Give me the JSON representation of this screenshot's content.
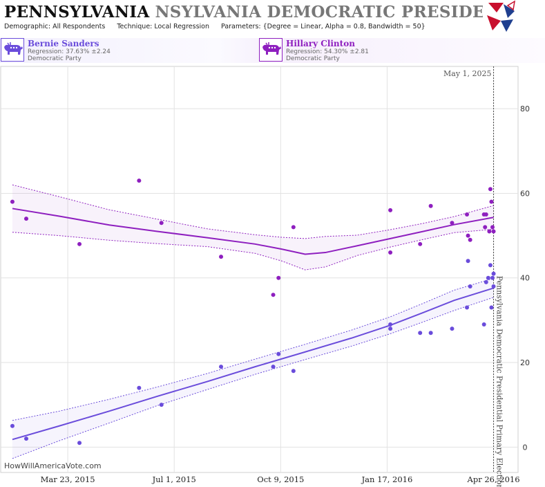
{
  "header": {
    "title_main": "PENNSYLVANIA",
    "title_sub": "NSYLVANIA DEMOCRATIC PRESIDENTIAL PRIM",
    "params": [
      {
        "key": "Demographic:",
        "value": "All Respondents"
      },
      {
        "key": "Technique:",
        "value": "Local Regression"
      },
      {
        "key": "Parameters:",
        "value": "{Degree = Linear, Alpha = 0.8, Bandwidth = 50}"
      }
    ]
  },
  "candidates": [
    {
      "name": "Bernie Sanders",
      "regression": "Regression: 37.63% ±2.24",
      "party": "Democratic Party",
      "color": "#6a4cdb"
    },
    {
      "name": "Hillary Clinton",
      "regression": "Regression: 54.30% ±2.81",
      "party": "Democratic Party",
      "color": "#8e1fbf"
    }
  ],
  "credit": "HowWillAmericaVote.com",
  "chart_data": {
    "type": "scatter",
    "x_axis": {
      "min": "2015-01-19",
      "max": "2016-05-19",
      "ticks": [
        "Mar 23, 2015",
        "Jul 1, 2015",
        "Oct 9, 2015",
        "Jan 17, 2016",
        "Apr 26, 2016"
      ]
    },
    "y_axis": {
      "min": -6,
      "max": 90,
      "ticks": [
        0,
        20,
        40,
        60,
        80
      ]
    },
    "grid": true,
    "marker": {
      "date": "2016-04-26",
      "label": "May 1, 2025",
      "vertical_label": "Pennsylvania Democratic Presidential Primary Election"
    },
    "series": [
      {
        "name": "Hillary Clinton",
        "color": "#8e1fbf",
        "points": [
          {
            "x": "2015-01-30",
            "y": 58
          },
          {
            "x": "2015-02-12",
            "y": 54
          },
          {
            "x": "2015-04-03",
            "y": 48
          },
          {
            "x": "2015-05-29",
            "y": 63
          },
          {
            "x": "2015-06-19",
            "y": 53
          },
          {
            "x": "2015-08-14",
            "y": 45
          },
          {
            "x": "2015-10-02",
            "y": 36
          },
          {
            "x": "2015-10-07",
            "y": 40
          },
          {
            "x": "2015-10-21",
            "y": 52
          },
          {
            "x": "2016-01-20",
            "y": 56
          },
          {
            "x": "2016-01-20",
            "y": 46
          },
          {
            "x": "2016-02-17",
            "y": 48
          },
          {
            "x": "2016-02-27",
            "y": 57
          },
          {
            "x": "2016-03-18",
            "y": 53
          },
          {
            "x": "2016-04-01",
            "y": 55
          },
          {
            "x": "2016-04-02",
            "y": 50
          },
          {
            "x": "2016-04-04",
            "y": 49
          },
          {
            "x": "2016-04-17",
            "y": 55
          },
          {
            "x": "2016-04-18",
            "y": 52
          },
          {
            "x": "2016-04-19",
            "y": 55
          },
          {
            "x": "2016-04-22",
            "y": 51
          },
          {
            "x": "2016-04-23",
            "y": 61
          },
          {
            "x": "2016-04-24",
            "y": 58
          },
          {
            "x": "2016-04-25",
            "y": 52
          },
          {
            "x": "2016-04-26",
            "y": 51
          }
        ],
        "fit": [
          {
            "x": "2015-01-30",
            "y": 56.4,
            "lo": 50.8,
            "hi": 62.0
          },
          {
            "x": "2015-03-15",
            "y": 54.6,
            "lo": 50.0,
            "hi": 59.2
          },
          {
            "x": "2015-05-01",
            "y": 52.5,
            "lo": 48.9,
            "hi": 56.1
          },
          {
            "x": "2015-06-15",
            "y": 51.0,
            "lo": 48.1,
            "hi": 53.9
          },
          {
            "x": "2015-08-01",
            "y": 49.5,
            "lo": 47.4,
            "hi": 51.6
          },
          {
            "x": "2015-09-15",
            "y": 48.0,
            "lo": 45.8,
            "hi": 50.2
          },
          {
            "x": "2015-10-10",
            "y": 46.8,
            "lo": 44.0,
            "hi": 49.6
          },
          {
            "x": "2015-11-01",
            "y": 45.6,
            "lo": 41.9,
            "hi": 49.3
          },
          {
            "x": "2015-11-20",
            "y": 46.0,
            "lo": 42.6,
            "hi": 49.8
          },
          {
            "x": "2015-12-20",
            "y": 47.6,
            "lo": 45.3,
            "hi": 50.1
          },
          {
            "x": "2016-01-20",
            "y": 49.3,
            "lo": 47.3,
            "hi": 51.4
          },
          {
            "x": "2016-02-20",
            "y": 51.0,
            "lo": 49.1,
            "hi": 52.9
          },
          {
            "x": "2016-03-20",
            "y": 52.6,
            "lo": 50.7,
            "hi": 54.5
          },
          {
            "x": "2016-04-26",
            "y": 54.3,
            "lo": 51.5,
            "hi": 57.1
          }
        ]
      },
      {
        "name": "Bernie Sanders",
        "color": "#6a4cdb",
        "points": [
          {
            "x": "2015-01-30",
            "y": 5
          },
          {
            "x": "2015-02-12",
            "y": 2
          },
          {
            "x": "2015-04-03",
            "y": 1
          },
          {
            "x": "2015-05-29",
            "y": 14
          },
          {
            "x": "2015-06-19",
            "y": 10
          },
          {
            "x": "2015-08-14",
            "y": 19
          },
          {
            "x": "2015-10-02",
            "y": 19
          },
          {
            "x": "2015-10-07",
            "y": 22
          },
          {
            "x": "2015-10-21",
            "y": 18
          },
          {
            "x": "2016-01-20",
            "y": 29
          },
          {
            "x": "2016-01-20",
            "y": 28
          },
          {
            "x": "2016-02-17",
            "y": 27
          },
          {
            "x": "2016-02-27",
            "y": 27
          },
          {
            "x": "2016-03-18",
            "y": 28
          },
          {
            "x": "2016-04-01",
            "y": 33
          },
          {
            "x": "2016-04-02",
            "y": 44
          },
          {
            "x": "2016-04-04",
            "y": 38
          },
          {
            "x": "2016-04-17",
            "y": 29
          },
          {
            "x": "2016-04-19",
            "y": 39
          },
          {
            "x": "2016-04-21",
            "y": 40
          },
          {
            "x": "2016-04-23",
            "y": 43
          },
          {
            "x": "2016-04-24",
            "y": 33
          },
          {
            "x": "2016-04-25",
            "y": 40
          },
          {
            "x": "2016-04-26",
            "y": 41
          },
          {
            "x": "2016-04-26",
            "y": 38
          }
        ],
        "fit": [
          {
            "x": "2015-01-30",
            "y": 1.8,
            "lo": -2.7,
            "hi": 6.3
          },
          {
            "x": "2015-03-15",
            "y": 5.0,
            "lo": 1.5,
            "hi": 8.5
          },
          {
            "x": "2015-05-01",
            "y": 8.5,
            "lo": 5.7,
            "hi": 11.3
          },
          {
            "x": "2015-06-15",
            "y": 12.0,
            "lo": 9.8,
            "hi": 14.2
          },
          {
            "x": "2015-08-01",
            "y": 15.5,
            "lo": 13.6,
            "hi": 17.4
          },
          {
            "x": "2015-09-15",
            "y": 19.0,
            "lo": 17.2,
            "hi": 20.8
          },
          {
            "x": "2015-11-01",
            "y": 22.5,
            "lo": 20.7,
            "hi": 24.3
          },
          {
            "x": "2015-12-15",
            "y": 25.8,
            "lo": 23.9,
            "hi": 27.7
          },
          {
            "x": "2016-01-20",
            "y": 28.8,
            "lo": 26.8,
            "hi": 30.8
          },
          {
            "x": "2016-02-20",
            "y": 31.8,
            "lo": 29.6,
            "hi": 34.0
          },
          {
            "x": "2016-03-20",
            "y": 34.7,
            "lo": 32.3,
            "hi": 37.1
          },
          {
            "x": "2016-04-26",
            "y": 37.6,
            "lo": 35.4,
            "hi": 39.9
          }
        ]
      }
    ]
  }
}
